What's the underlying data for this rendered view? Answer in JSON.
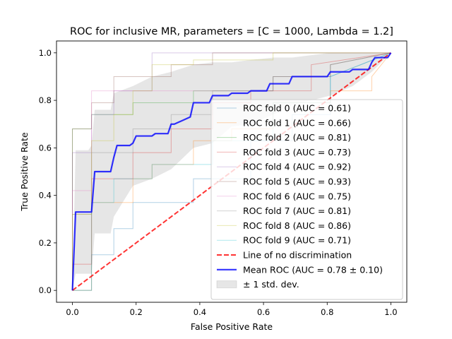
{
  "chart_data": {
    "type": "line",
    "title": "ROC for inclusive MR, parameters = [C = 1000, Lambda = 1.2]",
    "xlabel": "False Positive Rate",
    "ylabel": "True Positive Rate",
    "xlim": [
      -0.05,
      1.05
    ],
    "ylim": [
      -0.05,
      1.05
    ],
    "xticks": [
      "0.0",
      "0.2",
      "0.4",
      "0.6",
      "0.8",
      "1.0"
    ],
    "yticks": [
      "0.0",
      "0.2",
      "0.4",
      "0.6",
      "0.8",
      "1.0"
    ],
    "grid": false,
    "legend_position": "lower right",
    "series": [
      {
        "name": "ROC fold 0 (AUC = 0.61)",
        "color": "#1f77b4",
        "style": "fold",
        "x": [
          0,
          0.06,
          0.06,
          0.13,
          0.13,
          0.19,
          0.19,
          0.38,
          0.38,
          0.56,
          0.56,
          0.69,
          0.69,
          0.81,
          0.81,
          1.0
        ],
        "y": [
          0,
          0,
          0.15,
          0.15,
          0.26,
          0.26,
          0.37,
          0.37,
          0.47,
          0.47,
          0.63,
          0.63,
          0.74,
          0.74,
          0.9,
          1.0
        ]
      },
      {
        "name": "ROC fold 1 (AUC = 0.66)",
        "color": "#ff7f0e",
        "style": "fold",
        "x": [
          0,
          0.06,
          0.06,
          0.19,
          0.19,
          0.25,
          0.25,
          0.38,
          0.38,
          0.5,
          0.5,
          0.63,
          0.63,
          0.81,
          0.81,
          0.94,
          0.94,
          1.0
        ],
        "y": [
          0,
          0,
          0.37,
          0.37,
          0.47,
          0.47,
          0.53,
          0.53,
          0.63,
          0.63,
          0.68,
          0.68,
          0.79,
          0.79,
          0.84,
          0.84,
          0.9,
          1.0
        ]
      },
      {
        "name": "ROC fold 2 (AUC = 0.81)",
        "color": "#2ca02c",
        "style": "fold",
        "x": [
          0,
          0,
          0.06,
          0.06,
          0.19,
          0.19,
          0.38,
          0.38,
          0.63,
          0.63,
          0.81,
          0.81,
          1.0
        ],
        "y": [
          0,
          0.68,
          0.68,
          0.74,
          0.74,
          0.79,
          0.79,
          0.84,
          0.84,
          0.9,
          0.9,
          0.95,
          1.0
        ]
      },
      {
        "name": "ROC fold 3 (AUC = 0.73)",
        "color": "#d62728",
        "style": "fold",
        "x": [
          0,
          0,
          0.06,
          0.06,
          0.19,
          0.19,
          0.31,
          0.31,
          0.44,
          0.44,
          0.56,
          0.56,
          0.75,
          0.75,
          1.0
        ],
        "y": [
          0,
          0.11,
          0.11,
          0.47,
          0.47,
          0.58,
          0.58,
          0.68,
          0.68,
          0.79,
          0.79,
          0.84,
          0.84,
          0.95,
          1.0
        ]
      },
      {
        "name": "ROC fold 4 (AUC = 0.92)",
        "color": "#9467bd",
        "style": "fold",
        "x": [
          0,
          0,
          0.06,
          0.06,
          0.13,
          0.13,
          0.25,
          0.25,
          0.5,
          0.5,
          0.75,
          0.75,
          1.0
        ],
        "y": [
          0,
          0.58,
          0.58,
          0.74,
          0.74,
          0.84,
          0.84,
          1.0,
          1.0,
          1.0,
          1.0,
          1.0,
          1.0
        ]
      },
      {
        "name": "ROC fold 5 (AUC = 0.93)",
        "color": "#8c564b",
        "style": "fold",
        "x": [
          0,
          0,
          0.06,
          0.06,
          0.13,
          0.13,
          0.31,
          0.31,
          0.44,
          0.44,
          1.0
        ],
        "y": [
          0,
          0.68,
          0.68,
          0.79,
          0.79,
          0.9,
          0.9,
          0.95,
          0.95,
          1.0,
          1.0
        ]
      },
      {
        "name": "ROC fold 6 (AUC = 0.75)",
        "color": "#e377c2",
        "style": "fold",
        "x": [
          0,
          0,
          0.06,
          0.06,
          0.13,
          0.13,
          0.31,
          0.31,
          0.63,
          0.63,
          0.81,
          0.81,
          1.0
        ],
        "y": [
          0,
          0.42,
          0.42,
          0.84,
          0.84,
          0.84,
          0.84,
          0.84,
          0.84,
          0.9,
          0.9,
          0.95,
          1.0
        ]
      },
      {
        "name": "ROC fold 7 (AUC = 0.81)",
        "color": "#7f7f7f",
        "style": "fold",
        "x": [
          0,
          0,
          0.06,
          0.06,
          0.19,
          0.19,
          0.31,
          0.31,
          0.44,
          0.44,
          0.63,
          0.63,
          0.81,
          0.81,
          1.0
        ],
        "y": [
          0,
          0.32,
          0.32,
          0.58,
          0.58,
          0.68,
          0.68,
          0.74,
          0.74,
          0.84,
          0.84,
          0.9,
          0.9,
          0.95,
          1.0
        ]
      },
      {
        "name": "ROC fold 8 (AUC = 0.86)",
        "color": "#bcbd22",
        "style": "fold",
        "x": [
          0,
          0,
          0.06,
          0.06,
          0.13,
          0.13,
          0.19,
          0.19,
          0.25,
          0.25,
          0.38,
          0.38,
          0.63,
          0.63,
          1.0
        ],
        "y": [
          0,
          0.32,
          0.32,
          0.63,
          0.63,
          0.74,
          0.74,
          0.84,
          0.84,
          0.95,
          0.95,
          0.97,
          0.97,
          1.0,
          1.0
        ]
      },
      {
        "name": "ROC fold 9 (AUC = 0.71)",
        "color": "#17becf",
        "style": "fold",
        "x": [
          0,
          0.06,
          0.06,
          0.13,
          0.13,
          0.25,
          0.25,
          0.31,
          0.31,
          0.44,
          0.44,
          0.63,
          0.63,
          0.81,
          0.81,
          1.0
        ],
        "y": [
          0,
          0,
          0.37,
          0.37,
          0.47,
          0.47,
          0.53,
          0.53,
          0.53,
          0.53,
          0.63,
          0.63,
          0.79,
          0.79,
          0.9,
          1.0
        ]
      },
      {
        "name": "Line of no discrimination",
        "color": "#ff0000",
        "style": "chance",
        "x": [
          0,
          1
        ],
        "y": [
          0,
          1
        ]
      },
      {
        "name": "Mean ROC (AUC = 0.78 ± 0.10)",
        "color": "#0000ff",
        "style": "mean",
        "x": [
          0,
          0.01,
          0.05,
          0.06,
          0.07,
          0.12,
          0.13,
          0.14,
          0.18,
          0.19,
          0.2,
          0.25,
          0.26,
          0.3,
          0.31,
          0.32,
          0.37,
          0.38,
          0.43,
          0.44,
          0.49,
          0.5,
          0.55,
          0.56,
          0.61,
          0.62,
          0.68,
          0.69,
          0.7,
          0.8,
          0.81,
          0.82,
          0.87,
          0.88,
          0.93,
          0.94,
          0.95,
          0.99,
          1.0
        ],
        "y": [
          0,
          0.33,
          0.33,
          0.33,
          0.5,
          0.5,
          0.56,
          0.61,
          0.61,
          0.62,
          0.65,
          0.65,
          0.66,
          0.66,
          0.7,
          0.7,
          0.73,
          0.79,
          0.79,
          0.82,
          0.82,
          0.83,
          0.83,
          0.84,
          0.84,
          0.87,
          0.87,
          0.9,
          0.9,
          0.9,
          0.92,
          0.92,
          0.92,
          0.93,
          0.93,
          0.96,
          0.98,
          0.98,
          1.0
        ]
      },
      {
        "name": "± 1 std. dev.",
        "color": "#808080",
        "style": "band",
        "x": [
          0,
          0.01,
          0.05,
          0.06,
          0.07,
          0.12,
          0.13,
          0.19,
          0.25,
          0.31,
          0.38,
          0.44,
          0.5,
          0.56,
          0.63,
          0.69,
          0.75,
          0.81,
          0.88,
          0.94,
          1.0
        ],
        "upper": [
          0,
          0.59,
          0.59,
          0.61,
          0.76,
          0.76,
          0.83,
          0.86,
          0.9,
          0.92,
          0.95,
          0.96,
          0.96,
          0.97,
          0.98,
          0.98,
          0.99,
          1.0,
          1.0,
          1.0,
          1.0
        ],
        "lower": [
          0,
          0.07,
          0.07,
          0.07,
          0.24,
          0.24,
          0.31,
          0.44,
          0.47,
          0.51,
          0.6,
          0.62,
          0.69,
          0.7,
          0.74,
          0.78,
          0.8,
          0.82,
          0.86,
          0.92,
          1.0
        ]
      }
    ]
  }
}
